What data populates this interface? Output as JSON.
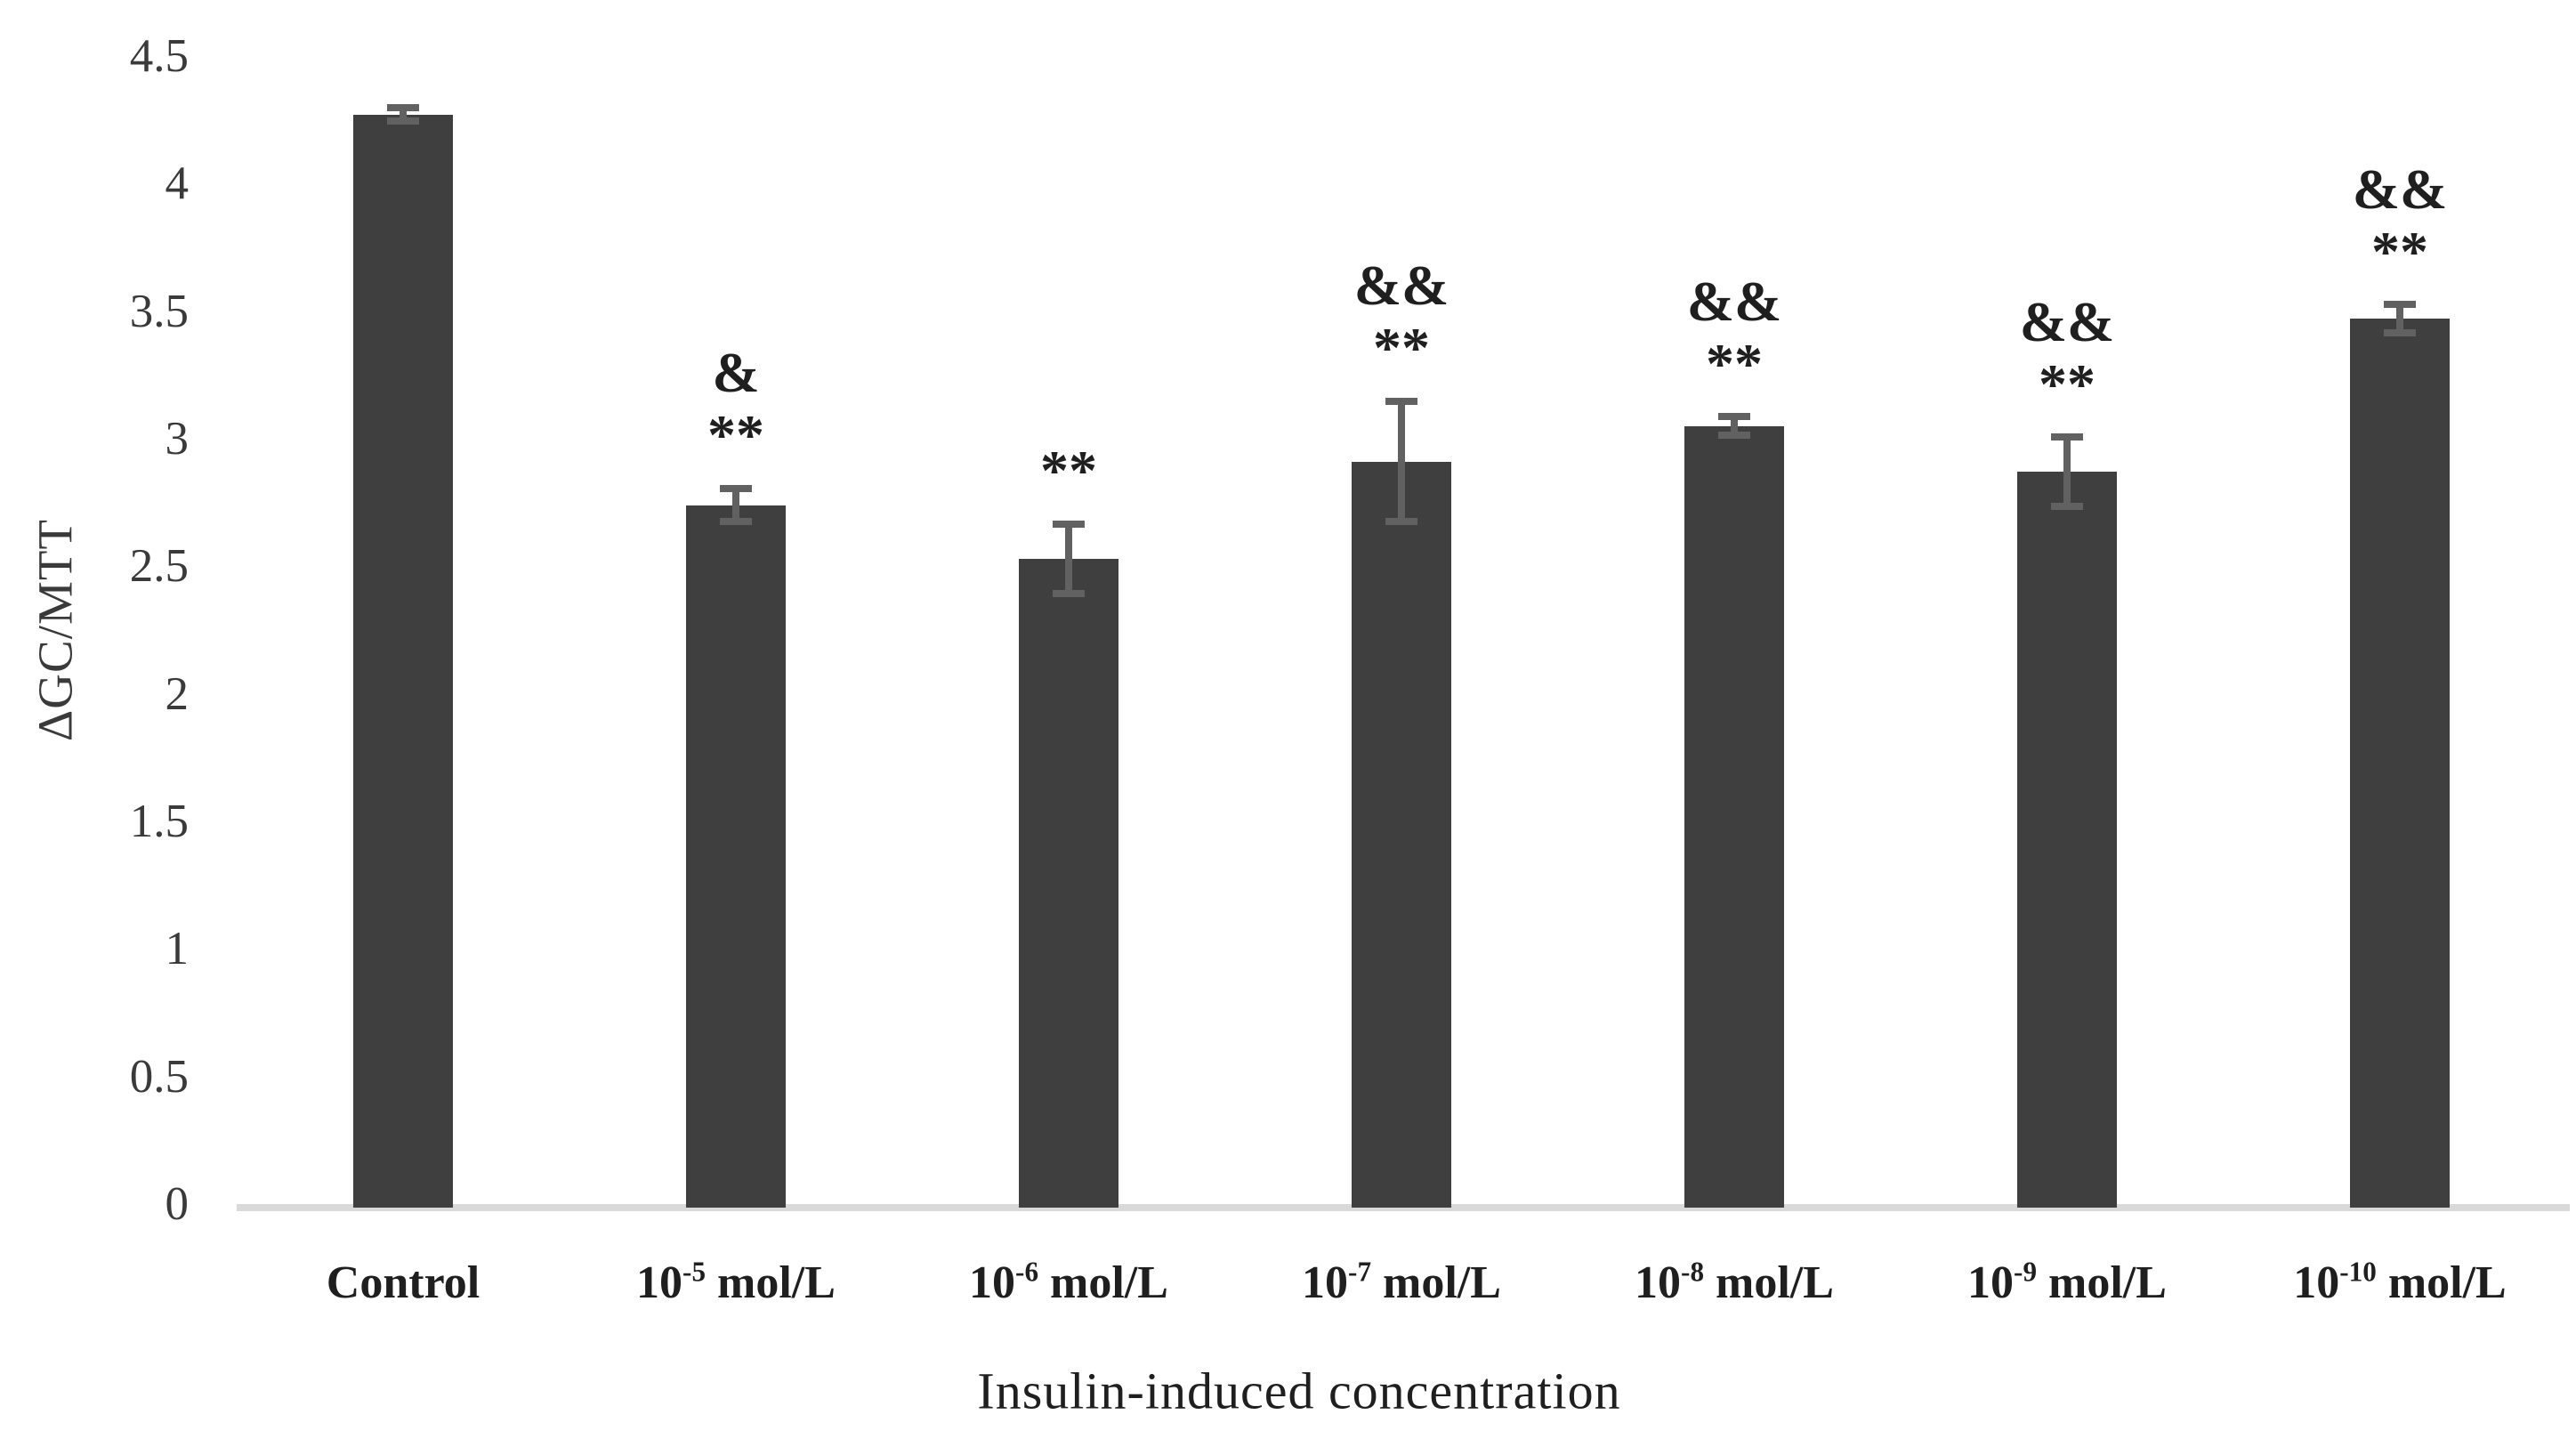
{
  "chart_data": {
    "type": "bar",
    "title": "",
    "xlabel": "Insulin-induced concentration",
    "ylabel": "ΔGC/MTT",
    "ylim": [
      0,
      4.5
    ],
    "ytick_step": 0.5,
    "yticks": [
      0,
      0.5,
      1,
      1.5,
      2,
      2.5,
      3,
      3.5,
      4,
      4.5
    ],
    "grid": false,
    "legend": null,
    "categories": [
      {
        "base": "Control",
        "sup": "",
        "suffix": ""
      },
      {
        "base": "10",
        "sup": "-5",
        "suffix": " mol/L"
      },
      {
        "base": "10",
        "sup": "-6",
        "suffix": " mol/L"
      },
      {
        "base": "10",
        "sup": "-7",
        "suffix": " mol/L"
      },
      {
        "base": "10",
        "sup": "-8",
        "suffix": " mol/L"
      },
      {
        "base": "10",
        "sup": "-9",
        "suffix": " mol/L"
      },
      {
        "base": "10",
        "sup": "-10",
        "suffix": " mol/L"
      }
    ],
    "values": [
      4.27,
      2.74,
      2.53,
      2.91,
      3.05,
      2.87,
      3.47
    ],
    "errors": [
      0.04,
      0.08,
      0.15,
      0.25,
      0.05,
      0.15,
      0.07
    ],
    "significance": [
      {
        "amp": "",
        "star": ""
      },
      {
        "amp": "&",
        "star": "**"
      },
      {
        "amp": "",
        "star": "**"
      },
      {
        "amp": "&&",
        "star": "**"
      },
      {
        "amp": "&&",
        "star": "**"
      },
      {
        "amp": "&&",
        "star": "**"
      },
      {
        "amp": "&&",
        "star": "**"
      }
    ],
    "bar_color": "#3f3f3f",
    "error_bar_color": "#616161",
    "axis_line_color": "#d9d9d9",
    "text_color": "#262626"
  }
}
